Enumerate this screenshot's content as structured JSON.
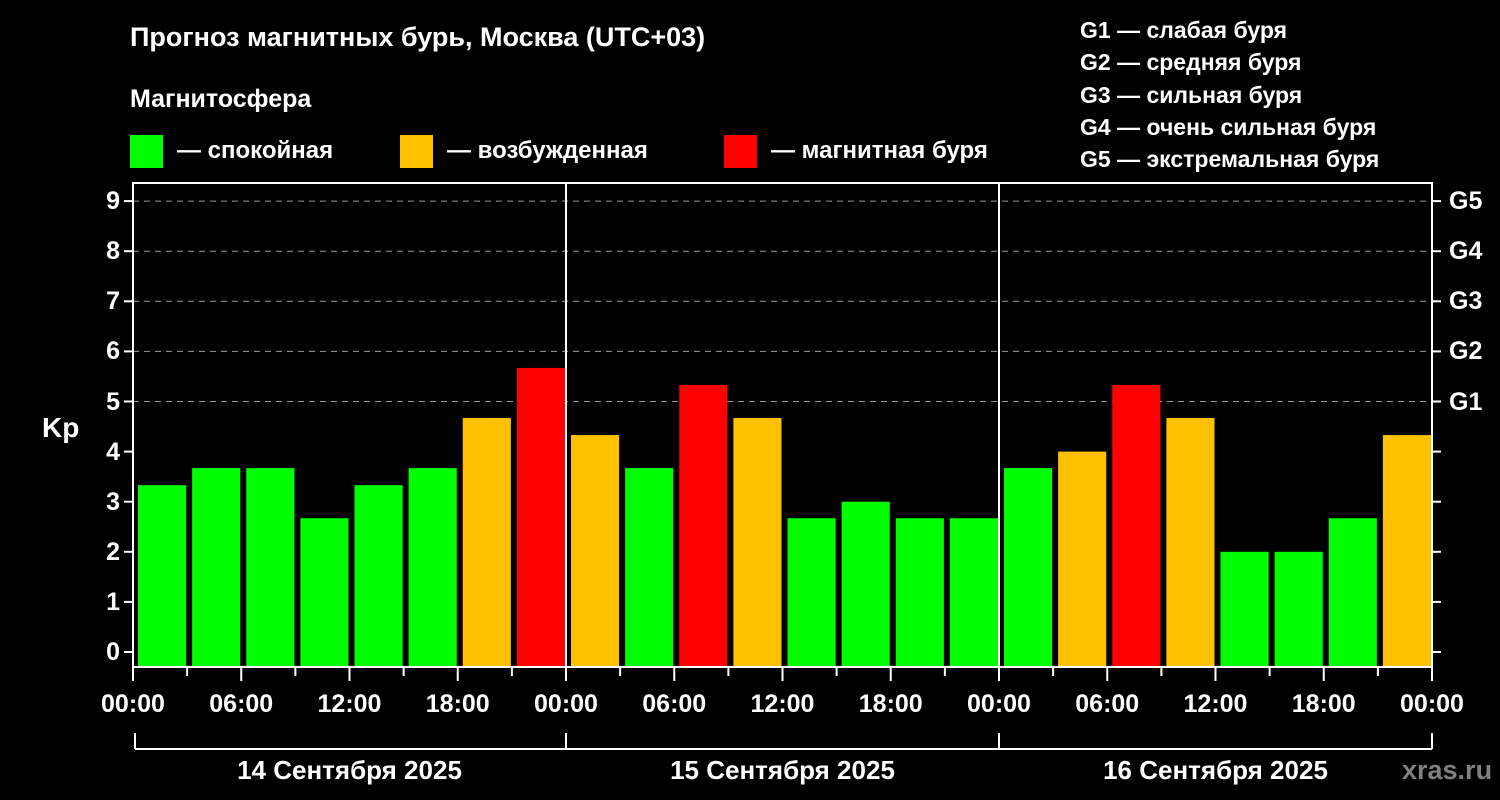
{
  "header": {
    "title": "Прогноз магнитных бурь, Москва (UTC+03)",
    "subtitle": "Магнитосфера"
  },
  "legend": [
    {
      "label": "— спокойная",
      "color": "#00ff00"
    },
    {
      "label": "— возбужденная",
      "color": "#ffc000"
    },
    {
      "label": "— магнитная буря",
      "color": "#ff0000"
    }
  ],
  "g_legend": [
    "G1 — слабая буря",
    "G2 — средняя буря",
    "G3 — сильная буря",
    "G4 — очень сильная буря",
    "G5 — экстремальная буря"
  ],
  "axes": {
    "ylabel": "Kp",
    "yticks": [
      "0",
      "1",
      "2",
      "3",
      "4",
      "5",
      "6",
      "7",
      "8",
      "9"
    ],
    "gticks": [
      "G1",
      "G2",
      "G3",
      "G4",
      "G5"
    ],
    "xticks": [
      "00:00",
      "06:00",
      "12:00",
      "18:00",
      "00:00",
      "06:00",
      "12:00",
      "18:00",
      "00:00",
      "06:00",
      "12:00",
      "18:00",
      "00:00"
    ],
    "days": [
      "14 Сентября 2025",
      "15 Сентября 2025",
      "16 Сентября 2025"
    ]
  },
  "watermark": "xras.ru",
  "chart_data": {
    "type": "bar",
    "title": "Прогноз магнитных бурь, Москва (UTC+03)",
    "xlabel": "",
    "ylabel": "Kp",
    "ylim": [
      0,
      9
    ],
    "grid": "horizontal dashed at 5-9",
    "secondary_y_labels": {
      "5": "G1",
      "6": "G2",
      "7": "G3",
      "8": "G4",
      "9": "G5"
    },
    "categories": [
      "14.09 00-03",
      "14.09 03-06",
      "14.09 06-09",
      "14.09 09-12",
      "14.09 12-15",
      "14.09 15-18",
      "14.09 18-21",
      "14.09 21-24",
      "15.09 00-03",
      "15.09 03-06",
      "15.09 06-09",
      "15.09 09-12",
      "15.09 12-15",
      "15.09 15-18",
      "15.09 18-21",
      "15.09 21-24",
      "16.09 00-03",
      "16.09 03-06",
      "16.09 06-09",
      "16.09 09-12",
      "16.09 12-15",
      "16.09 15-18",
      "16.09 18-21",
      "16.09 21-24"
    ],
    "values": [
      3.33,
      3.67,
      3.67,
      2.67,
      3.33,
      3.67,
      4.67,
      5.67,
      4.33,
      3.67,
      5.33,
      4.67,
      2.67,
      3.0,
      2.67,
      2.67,
      3.67,
      4.0,
      5.33,
      4.67,
      2.0,
      2.0,
      2.67,
      4.33
    ],
    "status": [
      "quiet",
      "quiet",
      "quiet",
      "quiet",
      "quiet",
      "quiet",
      "active",
      "storm",
      "active",
      "quiet",
      "storm",
      "active",
      "quiet",
      "quiet",
      "quiet",
      "quiet",
      "quiet",
      "active",
      "storm",
      "active",
      "quiet",
      "quiet",
      "quiet",
      "active"
    ],
    "status_colors": {
      "quiet": "#00ff00",
      "active": "#ffc000",
      "storm": "#ff0000"
    },
    "legend": [
      "спокойная",
      "возбужденная",
      "магнитная буря"
    ]
  }
}
